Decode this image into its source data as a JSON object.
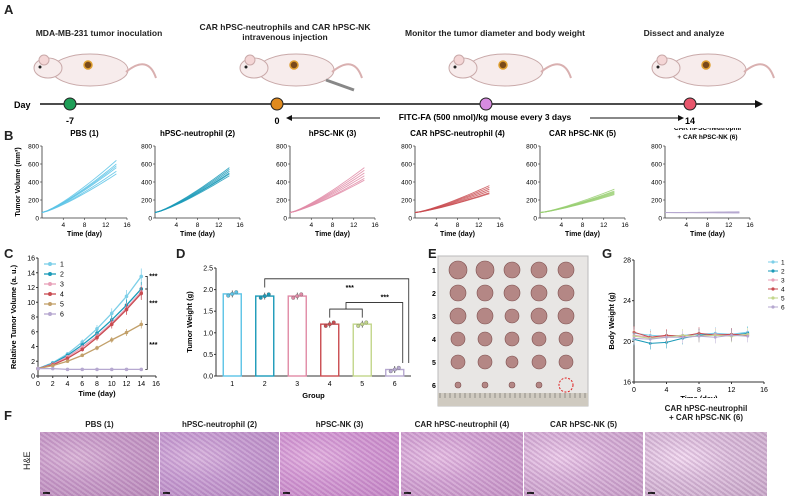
{
  "panel_a": {
    "letter": "A",
    "steps": [
      {
        "label": "MDA-MB-231 tumor inoculation",
        "day": "-7",
        "color": "#1f9e57"
      },
      {
        "label": "CAR hPSC-neutrophils and CAR hPSC-NK\nintravenous injection",
        "day": "0",
        "color": "#e08a1e"
      },
      {
        "label": "Monitor the tumor diameter and body weight",
        "day": "",
        "color": "#d78be0"
      },
      {
        "label": "Dissect and analyze",
        "day": "14",
        "color": "#e8566c"
      }
    ],
    "day_label": "Day",
    "dosing_note": "FITC-FA (500 nmol)/kg mouse every 3 days"
  },
  "panel_b": {
    "letter": "B"
  },
  "panel_c": {
    "letter": "C"
  },
  "panel_d": {
    "letter": "D"
  },
  "panel_e": {
    "letter": "E",
    "row_labels": [
      "1",
      "2",
      "3",
      "4",
      "5",
      "6"
    ]
  },
  "panel_f": {
    "letter": "F",
    "stain_label": "H&E",
    "titles": [
      "PBS (1)",
      "hPSC-neutrophil (2)",
      "hPSC-NK (3)",
      "CAR hPSC-neutrophil (4)",
      "CAR hPSC-NK (5)",
      "CAR hPSC-neutrophil\n+ CAR hPSC-NK (6)"
    ]
  },
  "panel_g": {
    "letter": "G"
  },
  "chart_data": [
    {
      "id": "B",
      "type": "line",
      "ylabel": "Tumor Volume (mm³)",
      "xlabel": "Time (day)",
      "xlim": [
        0,
        16
      ],
      "ylim": [
        0,
        800
      ],
      "xticks": [
        4,
        8,
        12,
        16
      ],
      "yticks": [
        0,
        200,
        400,
        600,
        800
      ],
      "panels": [
        {
          "title": "PBS (1)",
          "color": "#5bc3e6",
          "end_values": [
            640,
            600,
            580,
            560,
            520,
            490
          ]
        },
        {
          "title": "hPSC-neutrophil (2)",
          "color": "#1a9ab8",
          "end_values": [
            560,
            540,
            520,
            500,
            490,
            470
          ]
        },
        {
          "title": "hPSC-NK (3)",
          "color": "#e08aa6",
          "end_values": [
            560,
            530,
            500,
            470,
            440,
            420
          ]
        },
        {
          "title": "CAR hPSC-neutrophil (4)",
          "color": "#c94b50",
          "end_values": [
            360,
            340,
            320,
            300,
            280,
            270
          ]
        },
        {
          "title": "CAR hPSC-NK (5)",
          "color": "#99cf72",
          "end_values": [
            320,
            300,
            290,
            280,
            270,
            260
          ]
        },
        {
          "title": "CAR hPSC-neutrophil\n+ CAR hPSC-NK (6)",
          "color": "#b6a8d0",
          "end_values": [
            70,
            65,
            62,
            60,
            58,
            55
          ]
        }
      ],
      "start_value": 60
    },
    {
      "id": "C",
      "type": "line",
      "xlabel": "Time (day)",
      "ylabel": "Relative Tumor Volume (a. u.)",
      "xlim": [
        0,
        16
      ],
      "ylim": [
        0,
        16
      ],
      "xticks": [
        0,
        2,
        4,
        6,
        8,
        10,
        12,
        14,
        16
      ],
      "yticks": [
        0,
        2,
        4,
        6,
        8,
        10,
        12,
        14,
        16
      ],
      "x": [
        0,
        2,
        4,
        6,
        8,
        10,
        12,
        14
      ],
      "series": [
        {
          "name": "1",
          "color": "#7dcfe8",
          "values": [
            1,
            1.8,
            3.0,
            4.6,
            6.4,
            8.5,
            10.8,
            13.5
          ]
        },
        {
          "name": "2",
          "color": "#1a9ab8",
          "values": [
            1,
            1.7,
            2.8,
            4.2,
            5.8,
            7.6,
            9.6,
            11.8
          ]
        },
        {
          "name": "3",
          "color": "#e8a0b8",
          "values": [
            1,
            1.6,
            2.6,
            3.9,
            5.4,
            7.2,
            9.2,
            11.4
          ]
        },
        {
          "name": "4",
          "color": "#c94b50",
          "values": [
            1,
            1.5,
            2.4,
            3.6,
            5.2,
            7.0,
            9.0,
            11.2
          ]
        },
        {
          "name": "5",
          "color": "#c2a06a",
          "values": [
            1,
            1.4,
            2.0,
            2.8,
            3.8,
            4.9,
            5.9,
            7.0
          ]
        },
        {
          "name": "6",
          "color": "#b6a8d0",
          "values": [
            1,
            1.0,
            0.9,
            0.9,
            0.9,
            0.9,
            0.9,
            0.9
          ]
        }
      ],
      "annotations": [
        "***",
        "***",
        "***"
      ],
      "legend": "top-left"
    },
    {
      "id": "D",
      "type": "bar",
      "xlabel": "Group",
      "ylabel": "Tumor Weight (g)",
      "categories": [
        "1",
        "2",
        "3",
        "4",
        "5",
        "6"
      ],
      "values": [
        1.9,
        1.85,
        1.85,
        1.2,
        1.2,
        0.15
      ],
      "colors": [
        "#5bc3e6",
        "#1a9ab8",
        "#e08aa6",
        "#c94b50",
        "#c2d68a",
        "#b6a8d0"
      ],
      "ylim": [
        0,
        2.5
      ],
      "yticks": [
        0.0,
        0.5,
        1.0,
        1.5,
        2.0,
        2.5
      ],
      "annotations": [
        "***",
        "***"
      ]
    },
    {
      "id": "G",
      "type": "line",
      "xlabel": "Time (day)",
      "ylabel": "Body Weight (g)",
      "xlim": [
        0,
        16
      ],
      "ylim": [
        16,
        28
      ],
      "xticks": [
        0,
        4,
        8,
        12,
        16
      ],
      "yticks": [
        16,
        20,
        24,
        28
      ],
      "x": [
        0,
        2,
        4,
        6,
        8,
        10,
        12,
        14
      ],
      "series": [
        {
          "name": "1",
          "color": "#7dcfe8",
          "values": [
            20.8,
            20.6,
            20.5,
            20.6,
            20.7,
            20.8,
            20.7,
            20.9
          ]
        },
        {
          "name": "2",
          "color": "#1a9ab8",
          "values": [
            20.2,
            19.8,
            19.9,
            20.3,
            20.6,
            20.7,
            20.6,
            20.8
          ]
        },
        {
          "name": "3",
          "color": "#e8a0b8",
          "values": [
            20.6,
            20.4,
            20.5,
            20.6,
            20.5,
            20.7,
            20.6,
            20.7
          ]
        },
        {
          "name": "4",
          "color": "#c94b50",
          "values": [
            20.9,
            20.4,
            20.6,
            20.5,
            20.8,
            20.6,
            20.7,
            20.6
          ]
        },
        {
          "name": "5",
          "color": "#c2d68a",
          "values": [
            20.5,
            20.3,
            20.4,
            20.6,
            20.5,
            20.6,
            20.5,
            20.7
          ]
        },
        {
          "name": "6",
          "color": "#b6a8d0",
          "values": [
            20.3,
            20.2,
            20.4,
            20.4,
            20.5,
            20.4,
            20.6,
            20.5
          ]
        }
      ],
      "legend": "top-right"
    }
  ]
}
